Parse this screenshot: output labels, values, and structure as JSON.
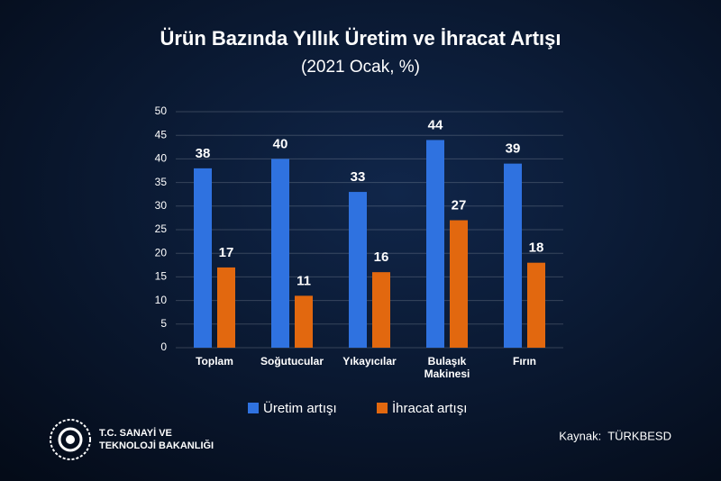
{
  "chart_data": {
    "type": "bar",
    "title": "Ürün Bazında Yıllık Üretim ve İhracat Artışı",
    "subtitle": "(2021 Ocak, %)",
    "categories": [
      "Toplam",
      "Soğutucular",
      "Yıkayıcılar",
      "Bulaşık Makinesi",
      "Fırın"
    ],
    "series": [
      {
        "name": "Üretim artışı",
        "color": "#2f72e0",
        "values": [
          38,
          40,
          33,
          44,
          39
        ]
      },
      {
        "name": "İhracat artışı",
        "color": "#e2680f",
        "values": [
          17,
          11,
          16,
          27,
          18
        ]
      }
    ],
    "ylim": [
      0,
      50
    ],
    "yticks": [
      0,
      5,
      10,
      15,
      20,
      25,
      30,
      35,
      40,
      45,
      50
    ],
    "grid": true
  },
  "footer": {
    "logo_lines": [
      "T.C. SANAYİ VE",
      "TEKNOLOJİ BAKANLIĞI"
    ],
    "source": "Kaynak:  TÜRKBESD"
  }
}
